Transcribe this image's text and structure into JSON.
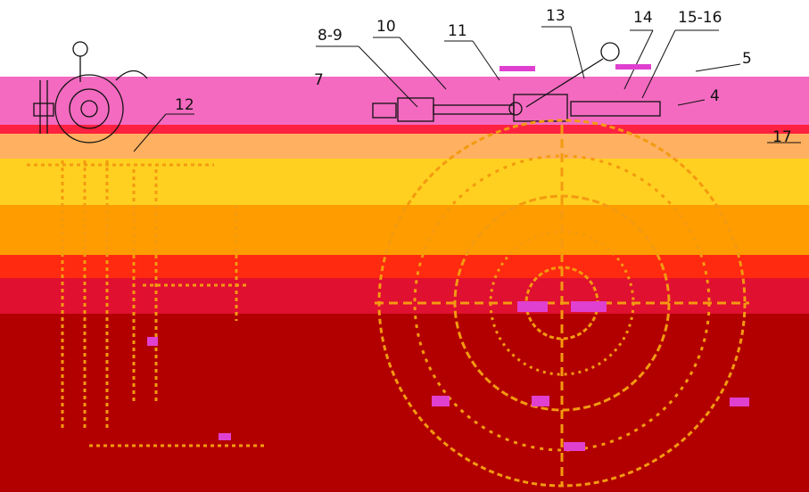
{
  "labels": [
    "8-9",
    "10",
    "11",
    "13",
    "14",
    "15-16",
    "5",
    "7",
    "12",
    "4",
    "17"
  ],
  "colors": {
    "line": "#111111",
    "bands": [
      "#f36ac0",
      "#ff2240",
      "#ffb060",
      "#ffd020",
      "#ff9c00",
      "#ff2a10",
      "#e01030",
      "#b20000"
    ],
    "overlay_orange": "#f39a10",
    "overlay_magenta": "#e040d0"
  }
}
